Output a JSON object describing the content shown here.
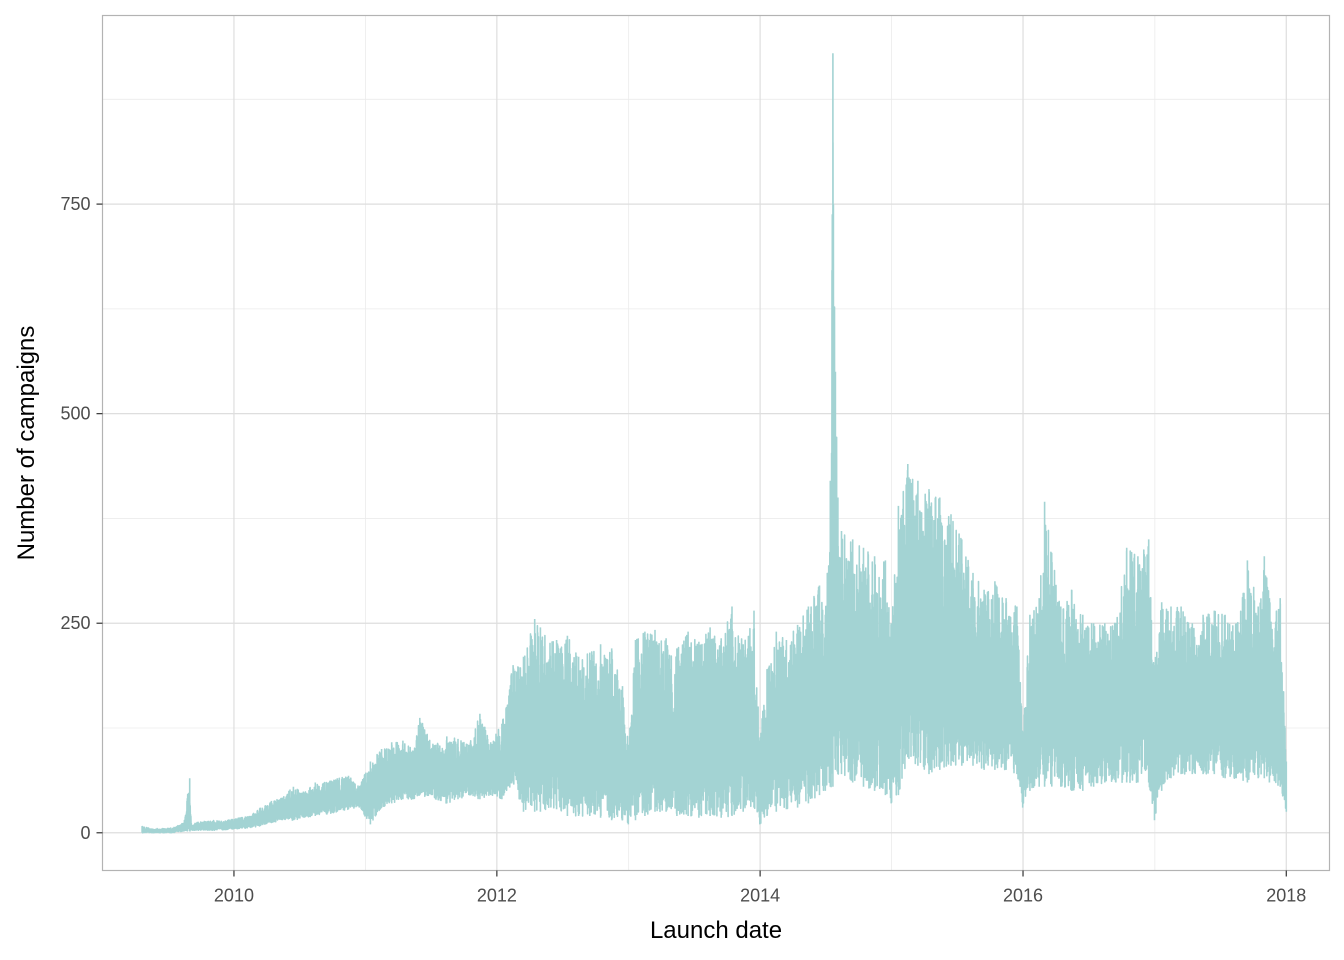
{
  "chart_data": {
    "type": "line",
    "title": "",
    "xlabel": "Launch date",
    "ylabel": "Number of campaigns",
    "x_ticks": [
      "2010",
      "2012",
      "2014",
      "2016",
      "2018"
    ],
    "y_ticks": [
      "0",
      "250",
      "500",
      "750"
    ],
    "xlim": [
      "2009-01-01",
      "2018-05-01"
    ],
    "ylim": [
      -45,
      975
    ],
    "grid": true,
    "legend": "none",
    "line_color": "#a3d3d3",
    "series": [
      {
        "x": [
          "2009-04-21",
          "2009-05-15",
          "2009-06-15",
          "2009-07-15",
          "2009-08-15",
          "2009-08-31",
          "2009-09-05",
          "2009-09-15",
          "2009-10-15",
          "2009-11-15",
          "2009-12-15",
          "2010-01-15",
          "2010-02-15",
          "2010-03-15",
          "2010-04-15",
          "2010-05-15",
          "2010-06-15",
          "2010-07-15",
          "2010-08-15",
          "2010-09-15",
          "2010-10-15",
          "2010-11-15",
          "2010-12-15",
          "2011-01-15",
          "2011-02-15",
          "2011-03-15",
          "2011-04-15",
          "2011-05-15",
          "2011-06-01",
          "2011-07-15",
          "2011-08-15",
          "2011-09-15",
          "2011-10-15",
          "2011-11-15",
          "2011-12-15",
          "2012-01-15",
          "2012-02-15",
          "2012-03-15",
          "2012-04-15",
          "2012-05-01",
          "2012-06-15",
          "2012-07-15",
          "2012-08-15",
          "2012-09-15",
          "2012-10-15",
          "2012-11-15",
          "2012-12-15",
          "2012-12-31",
          "2013-01-20",
          "2013-02-15",
          "2013-03-15",
          "2013-04-15",
          "2013-05-15",
          "2013-06-15",
          "2013-07-15",
          "2013-08-15",
          "2013-09-15",
          "2013-10-15",
          "2013-11-15",
          "2013-12-15",
          "2013-12-31",
          "2014-01-20",
          "2014-02-15",
          "2014-03-15",
          "2014-04-15",
          "2014-05-15",
          "2014-06-15",
          "2014-07-01",
          "2014-07-15",
          "2014-07-22",
          "2014-07-29",
          "2014-08-05",
          "2014-08-15",
          "2014-09-15",
          "2014-10-15",
          "2014-11-15",
          "2014-12-15",
          "2014-12-31",
          "2015-01-20",
          "2015-02-15",
          "2015-03-15",
          "2015-04-15",
          "2015-05-15",
          "2015-06-15",
          "2015-07-15",
          "2015-08-15",
          "2015-09-15",
          "2015-10-15",
          "2015-11-15",
          "2015-12-15",
          "2015-12-31",
          "2016-01-20",
          "2016-02-15",
          "2016-03-01",
          "2016-04-15",
          "2016-05-15",
          "2016-06-15",
          "2016-07-15",
          "2016-08-15",
          "2016-09-15",
          "2016-10-15",
          "2016-11-15",
          "2016-12-15",
          "2016-12-31",
          "2017-01-20",
          "2017-02-15",
          "2017-03-15",
          "2017-04-15",
          "2017-05-15",
          "2017-06-15",
          "2017-07-15",
          "2017-08-15",
          "2017-09-15",
          "2017-10-15",
          "2017-11-01",
          "2017-11-15",
          "2017-12-15",
          "2018-01-01"
        ],
        "lows": [
          0,
          0,
          0,
          0,
          2,
          2,
          3,
          3,
          3,
          3,
          4,
          5,
          6,
          8,
          12,
          15,
          15,
          18,
          20,
          22,
          25,
          28,
          30,
          10,
          30,
          35,
          40,
          40,
          45,
          40,
          35,
          40,
          45,
          40,
          45,
          40,
          60,
          25,
          25,
          25,
          28,
          20,
          20,
          20,
          18,
          15,
          15,
          10,
          15,
          20,
          25,
          25,
          20,
          20,
          18,
          20,
          18,
          20,
          25,
          30,
          10,
          20,
          25,
          28,
          30,
          35,
          45,
          50,
          55,
          55,
          75,
          70,
          70,
          60,
          55,
          50,
          45,
          35,
          45,
          90,
          80,
          70,
          75,
          80,
          80,
          80,
          75,
          75,
          75,
          70,
          30,
          50,
          55,
          55,
          55,
          50,
          50,
          55,
          60,
          60,
          60,
          60,
          60,
          15,
          50,
          65,
          70,
          70,
          70,
          70,
          65,
          65,
          60,
          65,
          65,
          60,
          55,
          25
        ],
        "highs": [
          8,
          5,
          5,
          6,
          12,
          65,
          8,
          12,
          14,
          15,
          15,
          18,
          20,
          30,
          38,
          42,
          55,
          48,
          60,
          60,
          65,
          68,
          55,
          85,
          100,
          108,
          110,
          98,
          137,
          105,
          115,
          112,
          105,
          142,
          108,
          130,
          200,
          210,
          255,
          245,
          230,
          235,
          210,
          215,
          225,
          220,
          175,
          105,
          230,
          240,
          242,
          232,
          220,
          240,
          228,
          245,
          232,
          270,
          225,
          265,
          110,
          195,
          240,
          230,
          248,
          270,
          295,
          260,
          420,
          930,
          550,
          400,
          360,
          350,
          340,
          330,
          325,
          250,
          390,
          440,
          420,
          410,
          400,
          380,
          350,
          310,
          290,
          300,
          280,
          270,
          120,
          260,
          280,
          395,
          270,
          290,
          260,
          250,
          250,
          250,
          340,
          330,
          350,
          200,
          275,
          270,
          270,
          250,
          260,
          265,
          260,
          250,
          325,
          270,
          330,
          280,
          280,
          85
        ]
      }
    ]
  }
}
